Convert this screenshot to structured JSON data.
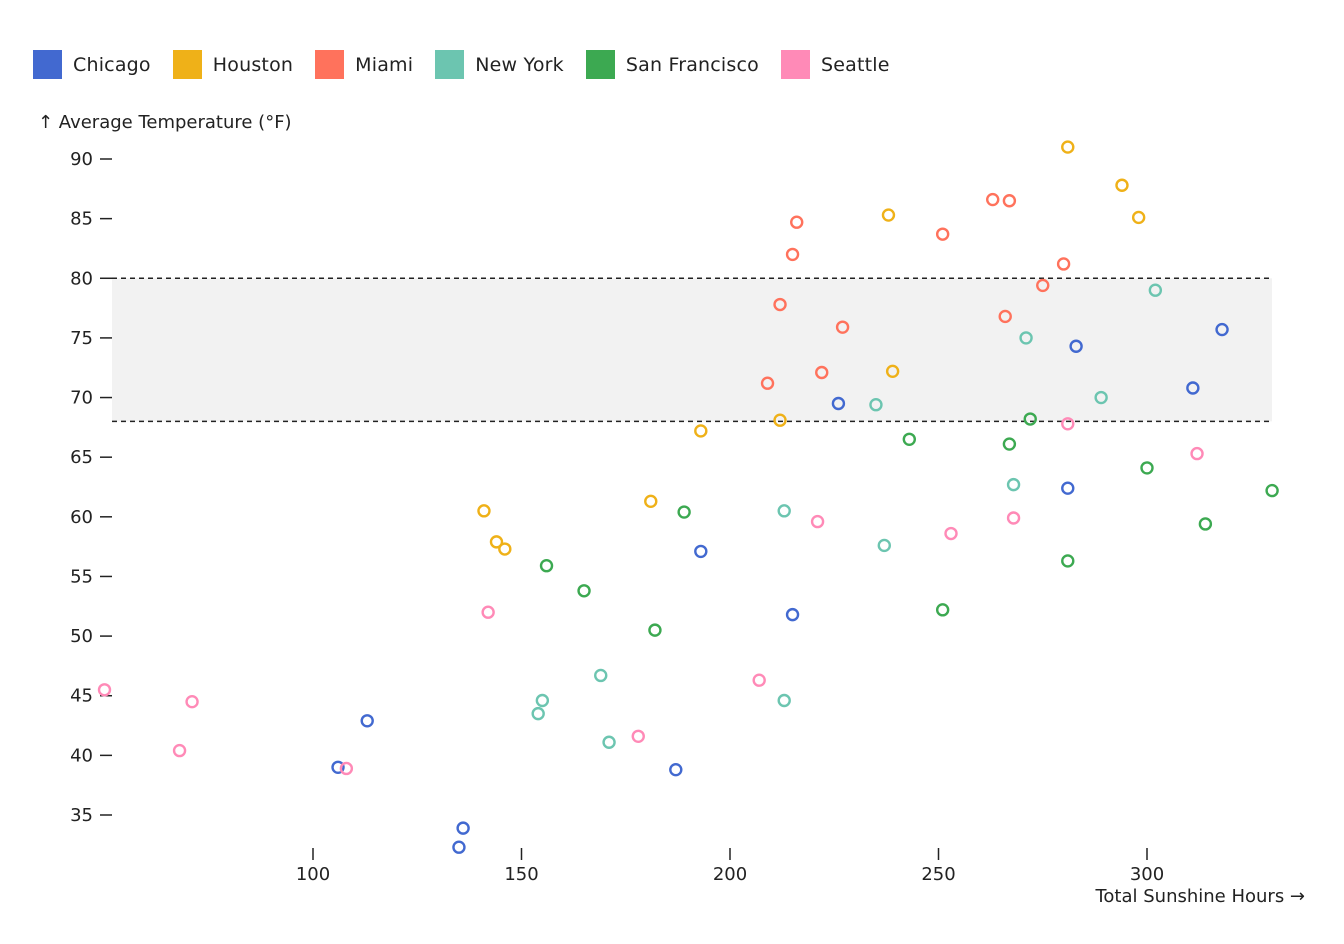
{
  "chart_data": {
    "type": "scatter",
    "title": "",
    "xlabel": "Total Sunshine Hours →",
    "ylabel": "↑ Average Temperature (°F)",
    "xlim": [
      50,
      330
    ],
    "ylim": [
      32,
      92
    ],
    "xticks": [
      100,
      150,
      200,
      250,
      300
    ],
    "yticks": [
      35,
      40,
      45,
      50,
      55,
      60,
      65,
      70,
      75,
      80,
      85,
      90
    ],
    "grid": false,
    "legend_position": "top-left",
    "band": {
      "y_from": 68,
      "y_to": 80,
      "fill": "#f2f2f2",
      "style": "dashed-border"
    },
    "series": [
      {
        "name": "Chicago",
        "color": "#4269d0",
        "points": [
          [
            106,
            39
          ],
          [
            113,
            42.9
          ],
          [
            136,
            33.9
          ],
          [
            135,
            32.3
          ],
          [
            187,
            38.8
          ],
          [
            193,
            57.1
          ],
          [
            215,
            51.8
          ],
          [
            226,
            69.5
          ],
          [
            281,
            62.4
          ],
          [
            283,
            74.3
          ],
          [
            311,
            70.8
          ],
          [
            318,
            75.7
          ]
        ]
      },
      {
        "name": "Houston",
        "color": "#efb118",
        "points": [
          [
            141,
            60.5
          ],
          [
            144,
            57.9
          ],
          [
            146,
            57.3
          ],
          [
            181,
            61.3
          ],
          [
            193,
            67.2
          ],
          [
            212,
            68.1
          ],
          [
            238,
            85.3
          ],
          [
            239,
            72.2
          ],
          [
            281,
            91
          ],
          [
            294,
            87.8
          ],
          [
            298,
            85.1
          ]
        ]
      },
      {
        "name": "Miami",
        "color": "#ff725c",
        "points": [
          [
            209,
            71.2
          ],
          [
            212,
            77.8
          ],
          [
            215,
            82
          ],
          [
            216,
            84.7
          ],
          [
            222,
            72.1
          ],
          [
            227,
            75.9
          ],
          [
            251,
            83.7
          ],
          [
            263,
            86.6
          ],
          [
            266,
            76.8
          ],
          [
            267,
            86.5
          ],
          [
            275,
            79.4
          ],
          [
            280,
            81.2
          ]
        ]
      },
      {
        "name": "New York",
        "color": "#6cc5b0",
        "points": [
          [
            154,
            43.5
          ],
          [
            155,
            44.6
          ],
          [
            169,
            46.7
          ],
          [
            171,
            41.1
          ],
          [
            213,
            60.5
          ],
          [
            213,
            44.6
          ],
          [
            235,
            69.4
          ],
          [
            237,
            57.6
          ],
          [
            268,
            62.7
          ],
          [
            271,
            75
          ],
          [
            289,
            70
          ],
          [
            302,
            79
          ]
        ]
      },
      {
        "name": "San Francisco",
        "color": "#3ca951",
        "points": [
          [
            156,
            55.9
          ],
          [
            165,
            53.8
          ],
          [
            182,
            50.5
          ],
          [
            189,
            60.4
          ],
          [
            243,
            66.5
          ],
          [
            251,
            52.2
          ],
          [
            267,
            66.1
          ],
          [
            272,
            68.2
          ],
          [
            281,
            56.3
          ],
          [
            300,
            64.1
          ],
          [
            314,
            59.4
          ],
          [
            330,
            62.2
          ]
        ]
      },
      {
        "name": "Seattle",
        "color": "#ff8ab7",
        "points": [
          [
            50,
            45.5
          ],
          [
            68,
            40.4
          ],
          [
            71,
            44.5
          ],
          [
            108,
            38.9
          ],
          [
            142,
            52
          ],
          [
            178,
            41.6
          ],
          [
            207,
            46.3
          ],
          [
            221,
            59.6
          ],
          [
            253,
            58.6
          ],
          [
            268,
            59.9
          ],
          [
            281,
            67.8
          ],
          [
            312,
            65.3
          ]
        ]
      }
    ]
  }
}
